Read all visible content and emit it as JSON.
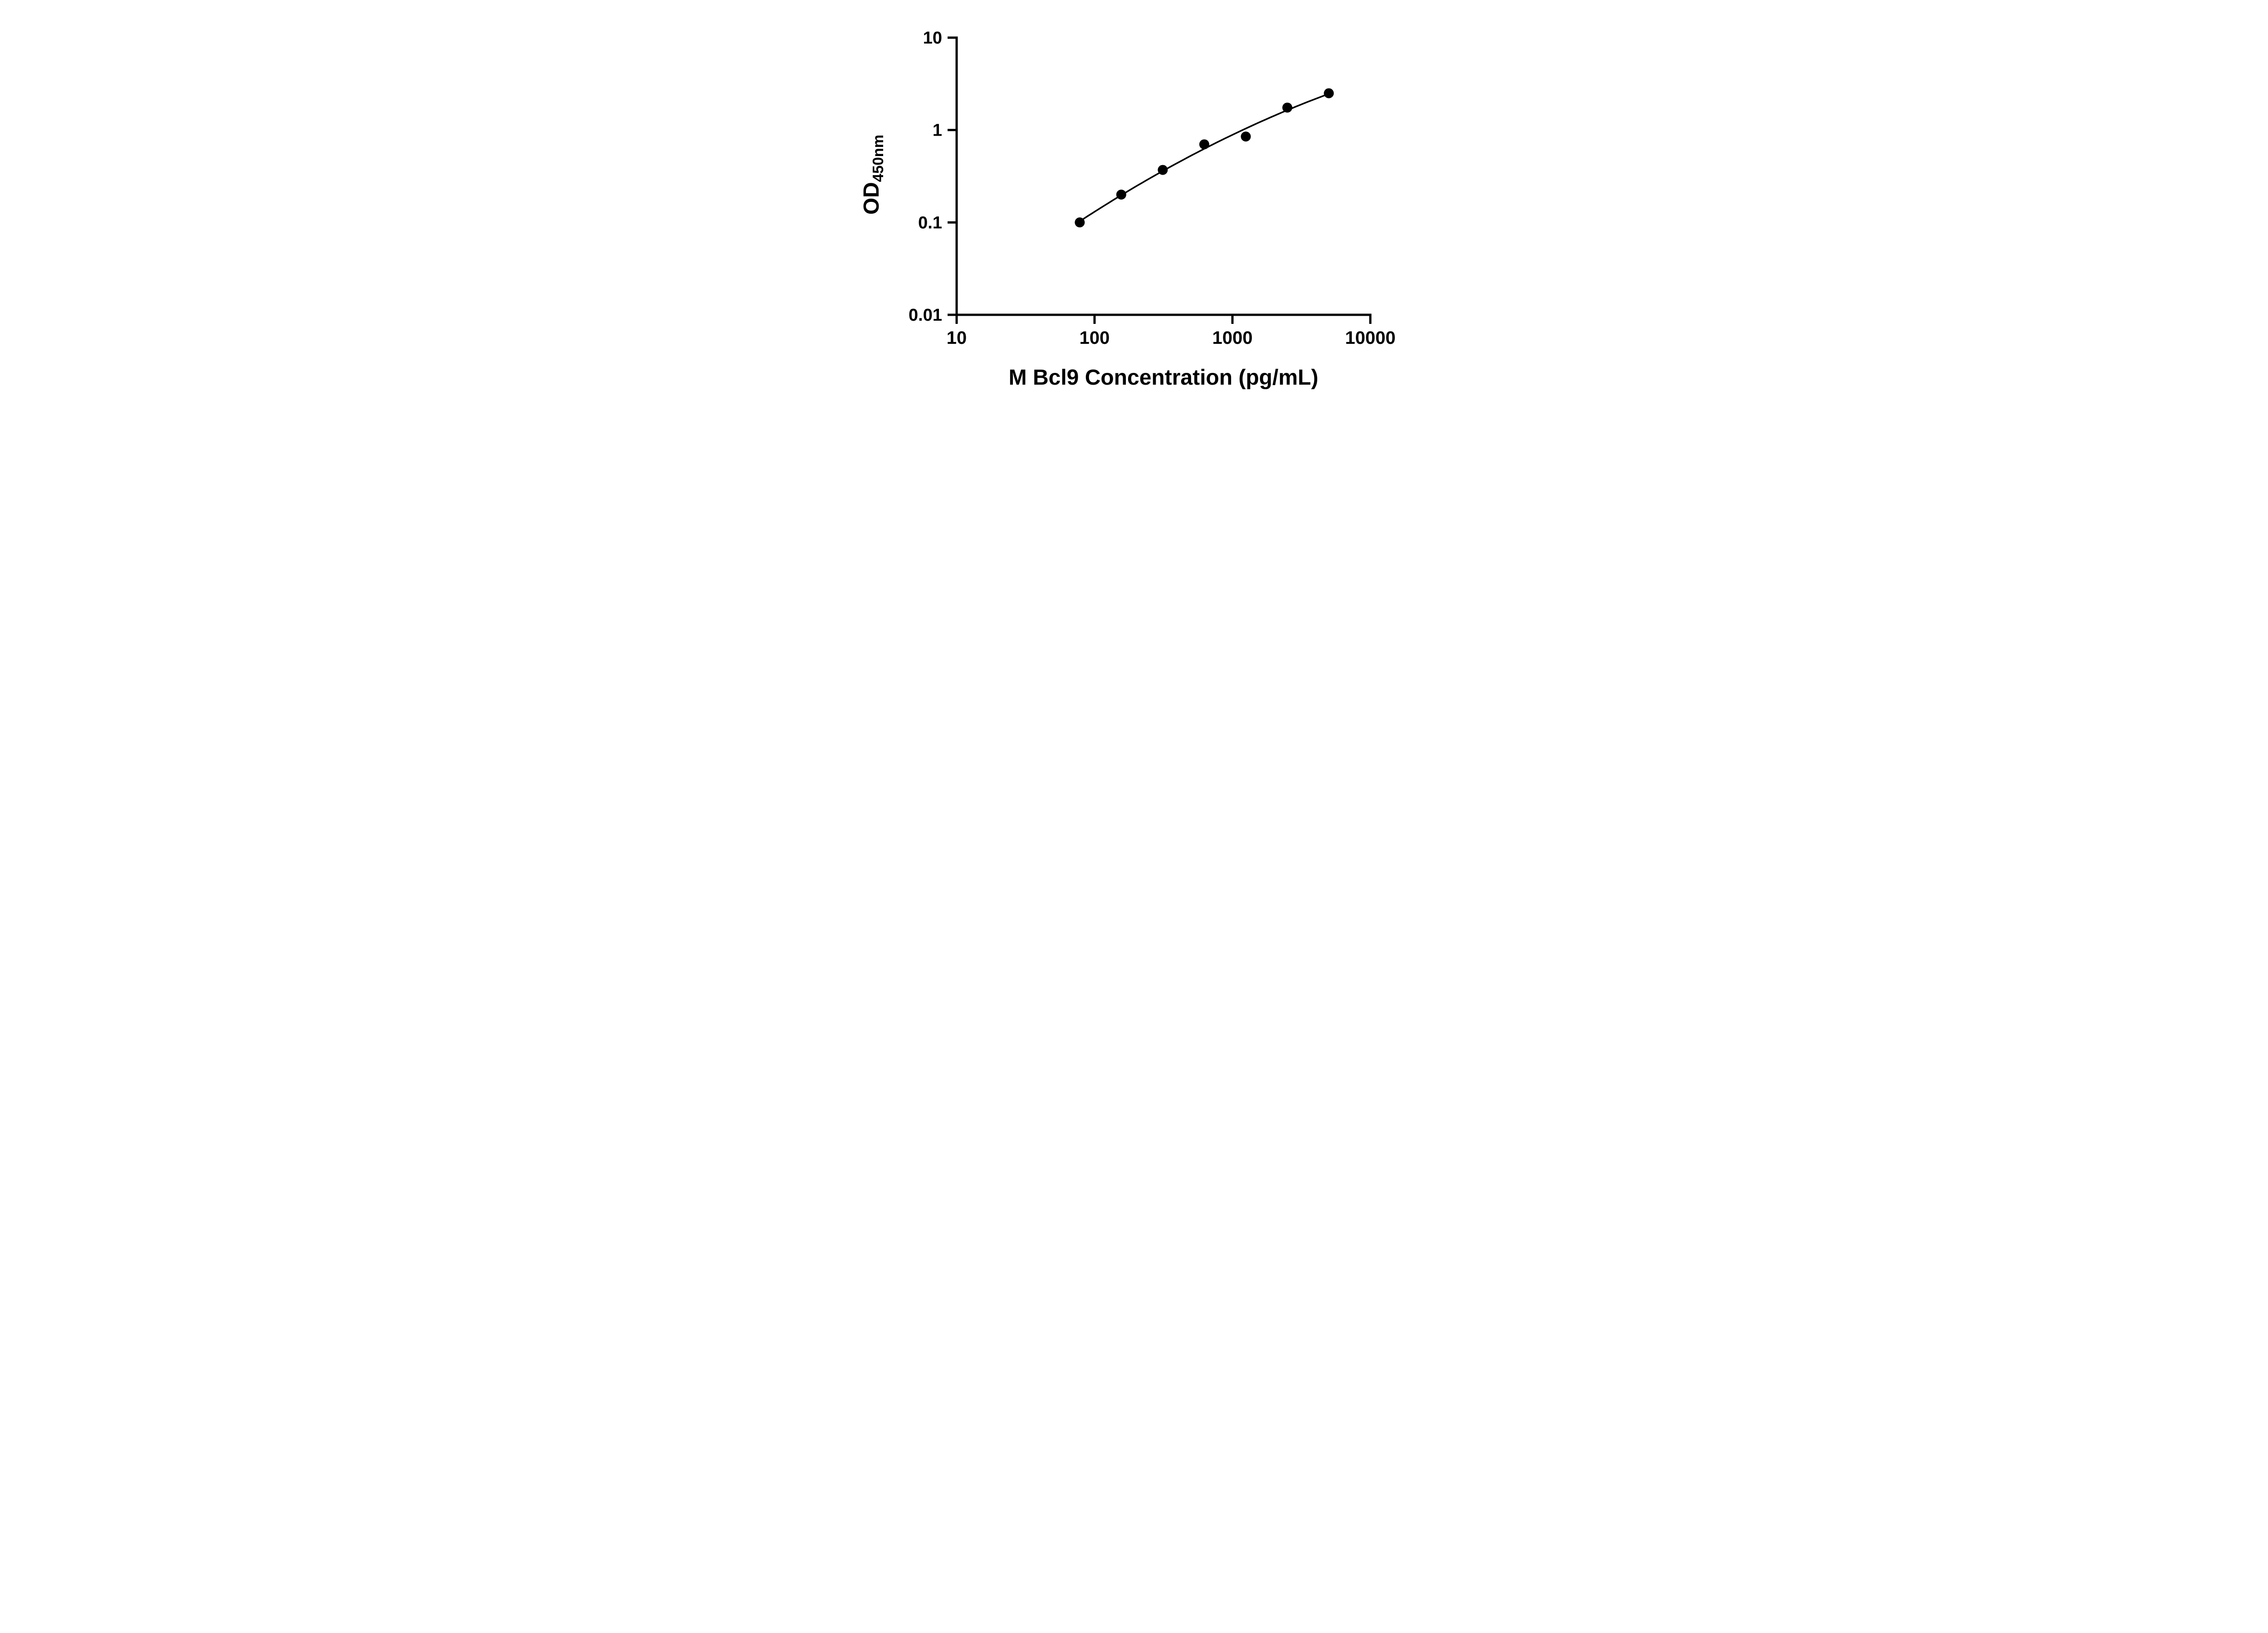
{
  "chart_data": {
    "type": "scatter",
    "title": "",
    "xlabel": "M Bcl9 Concentration (pg/mL)",
    "ylabel_main": "OD",
    "ylabel_sub": "450nm",
    "xscale": "log",
    "yscale": "log",
    "xlim": [
      10,
      10000
    ],
    "ylim": [
      0.01,
      10
    ],
    "x_ticks": [
      10,
      100,
      1000,
      10000
    ],
    "x_tick_labels": [
      "10",
      "100",
      "1000",
      "10000"
    ],
    "y_ticks": [
      10,
      1,
      0.1,
      0.01
    ],
    "y_tick_labels": [
      "10",
      "1",
      "0.1",
      "0.01"
    ],
    "x": [
      78.125,
      156.25,
      312.5,
      625,
      1250,
      2500,
      5000
    ],
    "y": [
      0.1,
      0.2,
      0.37,
      0.7,
      0.85,
      1.75,
      2.5
    ],
    "fit": "smooth log-log regression curve through standards",
    "grid": false,
    "legend": false,
    "marker_color": "#000000",
    "line_color": "#000000",
    "background_color": "#ffffff"
  }
}
